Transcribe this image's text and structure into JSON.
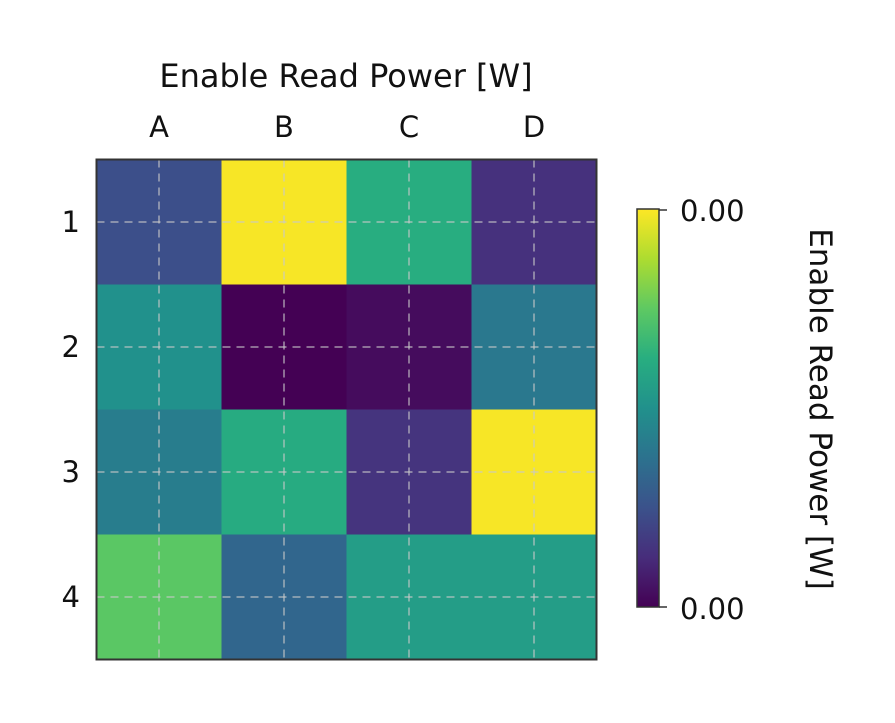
{
  "chart_data": {
    "type": "heatmap",
    "title": "Enable Read Power [W]",
    "x_categories": [
      "A",
      "B",
      "C",
      "D"
    ],
    "y_categories": [
      "1",
      "2",
      "3",
      "4"
    ],
    "x_axis_position": "top",
    "values": [
      [
        0.24,
        0.99,
        0.62,
        0.14
      ],
      [
        0.5,
        0.0,
        0.03,
        0.4
      ],
      [
        0.42,
        0.61,
        0.15,
        0.99
      ],
      [
        0.74,
        0.33,
        0.55,
        0.55
      ]
    ],
    "colormap": "viridis",
    "colorbar": {
      "label": "Enable Read Power [W]",
      "ticks": [
        "0.00",
        "0.00"
      ],
      "position": "right"
    },
    "grid": true,
    "grid_style": "dashed"
  }
}
